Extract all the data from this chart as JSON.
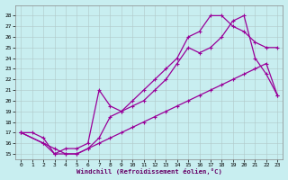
{
  "xlabel": "Windchill (Refroidissement éolien,°C)",
  "bg_color": "#c8eef0",
  "line_color": "#990099",
  "grid_color": "#b0c8c8",
  "xlim": [
    -0.5,
    23.5
  ],
  "ylim": [
    14.5,
    29
  ],
  "xticks": [
    0,
    1,
    2,
    3,
    4,
    5,
    6,
    7,
    8,
    9,
    10,
    11,
    12,
    13,
    14,
    15,
    16,
    17,
    18,
    19,
    20,
    21,
    22,
    23
  ],
  "yticks": [
    15,
    16,
    17,
    18,
    19,
    20,
    21,
    22,
    23,
    24,
    25,
    26,
    27,
    28
  ],
  "line1_x": [
    0,
    1,
    2,
    3,
    4,
    5,
    6,
    7,
    8,
    9,
    10,
    11,
    12,
    13,
    14,
    15,
    16,
    17,
    18,
    19,
    20,
    21,
    22,
    23
  ],
  "line1_y": [
    17.0,
    17.0,
    16.5,
    15.0,
    15.0,
    15.0,
    15.5,
    16.0,
    16.5,
    17.0,
    17.5,
    18.0,
    18.5,
    19.0,
    19.5,
    20.0,
    20.5,
    21.0,
    21.5,
    22.0,
    22.5,
    23.0,
    23.5,
    20.5
  ],
  "line2_x": [
    0,
    2,
    3,
    4,
    5,
    6,
    7,
    8,
    9,
    10,
    11,
    12,
    13,
    14,
    15,
    16,
    17,
    18,
    19,
    20,
    21,
    22,
    23
  ],
  "line2_y": [
    17.0,
    16.0,
    15.0,
    15.5,
    15.5,
    16.0,
    21.0,
    19.5,
    19.0,
    19.5,
    20.0,
    21.0,
    22.0,
    23.5,
    25.0,
    24.5,
    25.0,
    26.0,
    27.5,
    28.0,
    24.0,
    22.5,
    20.5
  ],
  "line3_x": [
    0,
    2,
    3,
    4,
    5,
    6,
    7,
    8,
    9,
    10,
    11,
    12,
    13,
    14,
    15,
    16,
    17,
    18,
    19,
    20,
    21,
    22,
    23
  ],
  "line3_y": [
    17.0,
    16.0,
    15.5,
    15.0,
    15.0,
    15.5,
    16.5,
    18.5,
    19.0,
    20.0,
    21.0,
    22.0,
    23.0,
    24.0,
    26.0,
    26.5,
    28.0,
    28.0,
    27.0,
    26.5,
    25.5,
    25.0,
    25.0
  ]
}
